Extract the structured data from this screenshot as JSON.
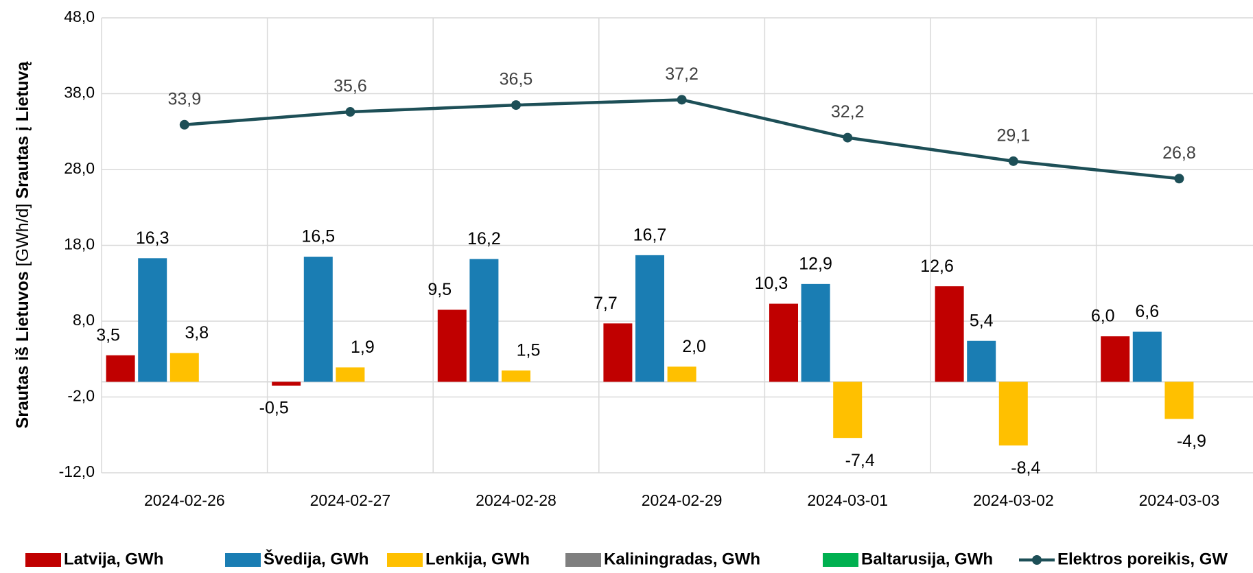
{
  "chart_data": {
    "type": "bar",
    "ylabel": [
      "Srautas iš Lietuvos",
      "[GWh/d]",
      "Srautas į Lietuvą"
    ],
    "categories": [
      "2024-02-26",
      "2024-02-27",
      "2024-02-28",
      "2024-02-29",
      "2024-03-01",
      "2024-03-02",
      "2024-03-03"
    ],
    "series": [
      {
        "name": "Latvija, GWh",
        "color": "#c00000",
        "values": [
          3.5,
          -0.5,
          9.5,
          7.7,
          10.3,
          12.6,
          6.0
        ],
        "value_labels": [
          "3,5",
          "-0,5",
          "9,5",
          "7,7",
          "10,3",
          "12,6",
          "6,0"
        ]
      },
      {
        "name": "Švedija, GWh",
        "color": "#1a7db3",
        "values": [
          16.3,
          16.5,
          16.2,
          16.7,
          12.9,
          5.4,
          6.6
        ],
        "value_labels": [
          "16,3",
          "16,5",
          "16,2",
          "16,7",
          "12,9",
          "5,4",
          "6,6"
        ]
      },
      {
        "name": "Lenkija, GWh",
        "color": "#ffc000",
        "values": [
          3.8,
          1.9,
          1.5,
          2.0,
          -7.4,
          -8.4,
          -4.9
        ],
        "value_labels": [
          "3,8",
          "1,9",
          "1,5",
          "2,0",
          "-7,4",
          "-8,4",
          "-4,9"
        ]
      },
      {
        "name": "Kaliningradas, GWh",
        "color": "#7f7f7f",
        "values": [
          0,
          0,
          0,
          0,
          0,
          0,
          0
        ]
      },
      {
        "name": "Baltarusija, GWh",
        "color": "#00b050",
        "values": [
          0,
          0,
          0,
          0,
          0,
          0,
          0
        ]
      },
      {
        "name": "Elektros poreikis, GW",
        "color": "#1d4f57",
        "type": "line",
        "values": [
          33.9,
          35.6,
          36.5,
          37.2,
          32.2,
          29.1,
          26.8
        ],
        "value_labels": [
          "33,9",
          "35,6",
          "36,5",
          "37,2",
          "32,2",
          "29,1",
          "26,8"
        ]
      }
    ],
    "ylim": [
      -12,
      48
    ],
    "yticks": [
      {
        "value": -12,
        "label": "-12,0"
      },
      {
        "value": -2,
        "label": "-2,0"
      },
      {
        "value": 8,
        "label": "8,0"
      },
      {
        "value": 18,
        "label": "18,0"
      },
      {
        "value": 28,
        "label": "28,0"
      },
      {
        "value": 38,
        "label": "38,0"
      },
      {
        "value": 48,
        "label": "48,0"
      }
    ],
    "grid": true,
    "legend": "bottom"
  }
}
